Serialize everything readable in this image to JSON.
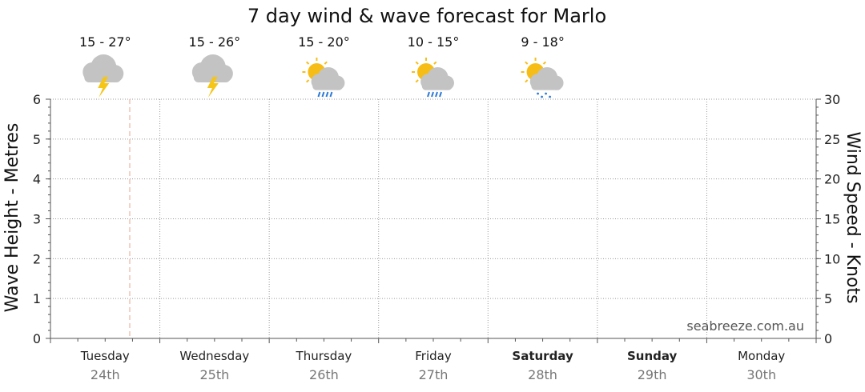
{
  "chart_data": {
    "type": "line",
    "title": "7 day wind & wave forecast for Marlo",
    "ylabel_left": "Wave Height - Metres",
    "ylabel_right": "Wind Speed - Knots",
    "ylim_left": [
      0,
      6
    ],
    "ylim_right": [
      0,
      30
    ],
    "yticks_left": [
      "0",
      "1",
      "2",
      "3",
      "4",
      "5",
      "6"
    ],
    "yticks_right": [
      "0",
      "5",
      "10",
      "15",
      "20",
      "25",
      "30"
    ],
    "grid": true,
    "series": [],
    "current_time_marker": "Tuesday 24th",
    "days": [
      {
        "day": "Tuesday",
        "date": "24th",
        "bold": false,
        "temp": "15 - 27°",
        "icon": "thunderstorm-icon"
      },
      {
        "day": "Wednesday",
        "date": "25th",
        "bold": false,
        "temp": "15 - 26°",
        "icon": "thunderstorm-icon"
      },
      {
        "day": "Thursday",
        "date": "26th",
        "bold": false,
        "temp": "15 - 20°",
        "icon": "sun-cloud-rain-icon"
      },
      {
        "day": "Friday",
        "date": "27th",
        "bold": false,
        "temp": "10 - 15°",
        "icon": "sun-cloud-rain-icon"
      },
      {
        "day": "Saturday",
        "date": "28th",
        "bold": true,
        "temp": "9 - 18°",
        "icon": "sun-cloud-showers-icon"
      },
      {
        "day": "Sunday",
        "date": "29th",
        "bold": true,
        "temp": "",
        "icon": ""
      },
      {
        "day": "Monday",
        "date": "30th",
        "bold": false,
        "temp": "",
        "icon": ""
      }
    ]
  },
  "watermark": "seabreeze.com.au",
  "colors": {
    "grid": "#9a9a9a",
    "axis": "#555555",
    "marker": "#e8a48c",
    "cloud": "#c3c3c3",
    "sun": "#f7bd17",
    "bolt": "#f5c518",
    "rain": "#2d7ad6"
  }
}
